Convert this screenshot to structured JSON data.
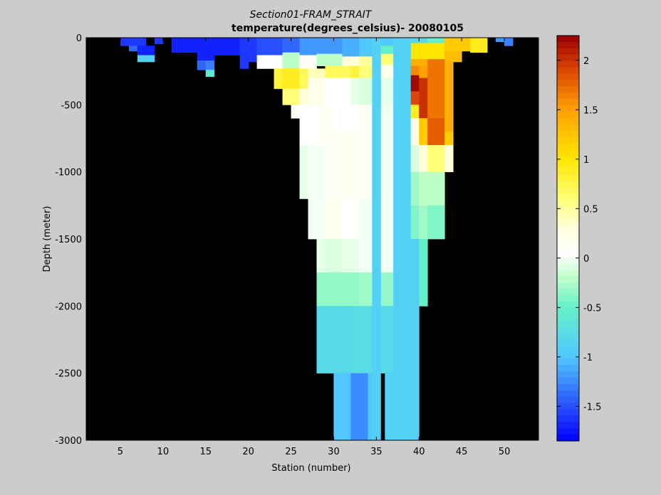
{
  "chart_data": {
    "type": "heatmap",
    "title": "Section01-FRAM_STRAIT",
    "subtitle": "temperature(degrees_celsius)- 20080105",
    "xlabel": "Station (number)",
    "ylabel": "Depth (meter)",
    "xlim": [
      1,
      54
    ],
    "ylim": [
      -3000,
      0
    ],
    "x_ticks": [
      5,
      10,
      15,
      20,
      25,
      30,
      35,
      40,
      45,
      50
    ],
    "y_ticks": [
      0,
      -500,
      -1000,
      -1500,
      -2000,
      -2500,
      -3000
    ],
    "y_tick_labels": [
      "0",
      "-500",
      "-1000",
      "-1500",
      "-2000",
      "-2500",
      "-3000"
    ],
    "x_tick_labels": [
      "5",
      "10",
      "15",
      "20",
      "25",
      "30",
      "35",
      "40",
      "45",
      "50"
    ],
    "colorbar": {
      "clim": [
        -1.85,
        2.25
      ],
      "ticks": [
        2,
        1.5,
        1,
        0.5,
        0,
        -0.5,
        -1,
        -1.5
      ],
      "tick_labels": [
        "2",
        "1.5",
        "1",
        "0.5",
        "0",
        "-0.5",
        "-1",
        "-1.5"
      ],
      "colormap": "jet-white-center"
    },
    "background_color": "#000000",
    "cells": [
      {
        "x0": 5,
        "x1": 8,
        "d0": 0,
        "d1": 60,
        "v": -1.6
      },
      {
        "x0": 6,
        "x1": 7,
        "d0": 60,
        "d1": 100,
        "v": -1.4
      },
      {
        "x0": 7,
        "x1": 9,
        "d0": 60,
        "d1": 130,
        "v": -1.7
      },
      {
        "x0": 7,
        "x1": 9,
        "d0": 130,
        "d1": 180,
        "v": -0.9
      },
      {
        "x0": 9,
        "x1": 10,
        "d0": 0,
        "d1": 45,
        "v": -1.6
      },
      {
        "x0": 11,
        "x1": 14,
        "d0": 0,
        "d1": 110,
        "v": -1.7
      },
      {
        "x0": 14,
        "x1": 16,
        "d0": 0,
        "d1": 170,
        "v": -1.7
      },
      {
        "x0": 14,
        "x1": 15,
        "d0": 170,
        "d1": 240,
        "v": -1.4
      },
      {
        "x0": 15,
        "x1": 16,
        "d0": 170,
        "d1": 240,
        "v": -1.3
      },
      {
        "x0": 15,
        "x1": 16,
        "d0": 240,
        "d1": 290,
        "v": -0.6
      },
      {
        "x0": 16,
        "x1": 19,
        "d0": 0,
        "d1": 130,
        "v": -1.7
      },
      {
        "x0": 19,
        "x1": 21,
        "d0": 0,
        "d1": 180,
        "v": -1.6
      },
      {
        "x0": 21,
        "x1": 24,
        "d0": 0,
        "d1": 130,
        "v": -1.5
      },
      {
        "x0": 21,
        "x1": 24,
        "d0": 130,
        "d1": 230,
        "v": 0.05
      },
      {
        "x0": 24,
        "x1": 26,
        "d0": 0,
        "d1": 110,
        "v": -1.4
      },
      {
        "x0": 24,
        "x1": 26,
        "d0": 110,
        "d1": 230,
        "v": -0.2
      },
      {
        "x0": 26,
        "x1": 28,
        "d0": 0,
        "d1": 130,
        "v": -1.2
      },
      {
        "x0": 26,
        "x1": 28,
        "d0": 130,
        "d1": 230,
        "v": 0.1
      },
      {
        "x0": 28,
        "x1": 31,
        "d0": 0,
        "d1": 120,
        "v": -1.2
      },
      {
        "x0": 28,
        "x1": 31,
        "d0": 120,
        "d1": 210,
        "v": -0.2
      },
      {
        "x0": 31,
        "x1": 33,
        "d0": 0,
        "d1": 140,
        "v": -1.1
      },
      {
        "x0": 31,
        "x1": 33,
        "d0": 140,
        "d1": 210,
        "v": 0.3
      },
      {
        "x0": 33,
        "x1": 35,
        "d0": 0,
        "d1": 140,
        "v": -1.0
      },
      {
        "x0": 33,
        "x1": 35,
        "d0": 140,
        "d1": 210,
        "v": 0.5
      },
      {
        "x0": 35,
        "x1": 37,
        "d0": 0,
        "d1": 60,
        "v": -1.0
      },
      {
        "x0": 35,
        "x1": 37,
        "d0": 60,
        "d1": 120,
        "v": -0.5
      },
      {
        "x0": 35,
        "x1": 37,
        "d0": 120,
        "d1": 200,
        "v": 0.6
      },
      {
        "x0": 39,
        "x1": 41,
        "d0": 0,
        "d1": 40,
        "v": -0.8
      },
      {
        "x0": 39,
        "x1": 41,
        "d0": 40,
        "d1": 160,
        "v": 1.0
      },
      {
        "x0": 41,
        "x1": 43,
        "d0": 0,
        "d1": 40,
        "v": -0.5
      },
      {
        "x0": 41,
        "x1": 43,
        "d0": 40,
        "d1": 160,
        "v": 1.0
      },
      {
        "x0": 43,
        "x1": 46,
        "d0": 0,
        "d1": 100,
        "v": 1.2
      },
      {
        "x0": 43,
        "x1": 45,
        "d0": 100,
        "d1": 180,
        "v": 1.3
      },
      {
        "x0": 46,
        "x1": 48,
        "d0": 0,
        "d1": 110,
        "v": 0.9
      },
      {
        "x0": 49,
        "x1": 50,
        "d0": 0,
        "d1": 30,
        "v": -1.2
      },
      {
        "x0": 50,
        "x1": 51,
        "d0": 0,
        "d1": 60,
        "v": -1.3
      },
      {
        "x0": 19,
        "x1": 20,
        "d0": 180,
        "d1": 230,
        "v": -1.6
      },
      {
        "x0": 23,
        "x1": 24,
        "d0": 230,
        "d1": 380,
        "v": 0.8
      },
      {
        "x0": 24,
        "x1": 26,
        "d0": 230,
        "d1": 380,
        "v": 0.9
      },
      {
        "x0": 24,
        "x1": 26,
        "d0": 380,
        "d1": 500,
        "v": 0.6
      },
      {
        "x0": 26,
        "x1": 27,
        "d0": 230,
        "d1": 380,
        "v": 0.7
      },
      {
        "x0": 26,
        "x1": 27,
        "d0": 380,
        "d1": 500,
        "v": 0.3
      },
      {
        "x0": 27,
        "x1": 29,
        "d0": 230,
        "d1": 300,
        "v": 0.4
      },
      {
        "x0": 27,
        "x1": 29,
        "d0": 300,
        "d1": 500,
        "v": 0.2
      },
      {
        "x0": 29,
        "x1": 32,
        "d0": 210,
        "d1": 300,
        "v": 0.7
      },
      {
        "x0": 29,
        "x1": 32,
        "d0": 300,
        "d1": 500,
        "v": 0.05
      },
      {
        "x0": 32,
        "x1": 33,
        "d0": 210,
        "d1": 300,
        "v": 0.8
      },
      {
        "x0": 32,
        "x1": 33,
        "d0": 300,
        "d1": 500,
        "v": -0.05
      },
      {
        "x0": 33,
        "x1": 35,
        "d0": 210,
        "d1": 300,
        "v": 0.6
      },
      {
        "x0": 33,
        "x1": 35,
        "d0": 300,
        "d1": 500,
        "v": -0.1
      },
      {
        "x0": 35,
        "x1": 37,
        "d0": 200,
        "d1": 300,
        "v": 0.2
      },
      {
        "x0": 35,
        "x1": 37,
        "d0": 300,
        "d1": 500,
        "v": -0.05
      },
      {
        "x0": 25,
        "x1": 26,
        "d0": 500,
        "d1": 600,
        "v": 0.1
      },
      {
        "x0": 26,
        "x1": 28,
        "d0": 500,
        "d1": 800,
        "v": 0.05
      },
      {
        "x0": 26,
        "x1": 27,
        "d0": 800,
        "d1": 1200,
        "v": -0.05
      },
      {
        "x0": 27,
        "x1": 29,
        "d0": 800,
        "d1": 1200,
        "v": 0.0
      },
      {
        "x0": 28,
        "x1": 30,
        "d0": 500,
        "d1": 800,
        "v": 0.1
      },
      {
        "x0": 29,
        "x1": 30,
        "d0": 800,
        "d1": 1200,
        "v": 0.1
      },
      {
        "x0": 30,
        "x1": 33,
        "d0": 500,
        "d1": 700,
        "v": 0.05
      },
      {
        "x0": 30,
        "x1": 33,
        "d0": 700,
        "d1": 1200,
        "v": 0.15
      },
      {
        "x0": 33,
        "x1": 35,
        "d0": 500,
        "d1": 1200,
        "v": 0.1
      },
      {
        "x0": 35,
        "x1": 37,
        "d0": 500,
        "d1": 1200,
        "v": 0.0
      },
      {
        "x0": 27,
        "x1": 29,
        "d0": 1200,
        "d1": 1500,
        "v": 0.0
      },
      {
        "x0": 28,
        "x1": 29,
        "d0": 1500,
        "d1": 1750,
        "v": -0.05
      },
      {
        "x0": 29,
        "x1": 31,
        "d0": 1200,
        "d1": 1500,
        "v": 0.15
      },
      {
        "x0": 29,
        "x1": 31,
        "d0": 1500,
        "d1": 1750,
        "v": -0.1
      },
      {
        "x0": 31,
        "x1": 33,
        "d0": 1200,
        "d1": 1500,
        "v": 0.05
      },
      {
        "x0": 31,
        "x1": 33,
        "d0": 1500,
        "d1": 1750,
        "v": -0.05
      },
      {
        "x0": 33,
        "x1": 35,
        "d0": 1200,
        "d1": 1750,
        "v": 0.0
      },
      {
        "x0": 35,
        "x1": 37,
        "d0": 1200,
        "d1": 1750,
        "v": 0.0
      },
      {
        "x0": 28,
        "x1": 33,
        "d0": 1750,
        "d1": 2000,
        "v": -0.35
      },
      {
        "x0": 33,
        "x1": 35,
        "d0": 1750,
        "d1": 2000,
        "v": -0.3
      },
      {
        "x0": 35,
        "x1": 37,
        "d0": 1750,
        "d1": 2000,
        "v": -0.35
      },
      {
        "x0": 28,
        "x1": 32,
        "d0": 2000,
        "d1": 2500,
        "v": -0.8
      },
      {
        "x0": 32,
        "x1": 35,
        "d0": 2000,
        "d1": 2500,
        "v": -0.75
      },
      {
        "x0": 35,
        "x1": 37,
        "d0": 2000,
        "d1": 2500,
        "v": -0.8
      },
      {
        "x0": 30,
        "x1": 32,
        "d0": 2500,
        "d1": 3000,
        "v": -1.0
      },
      {
        "x0": 32,
        "x1": 34,
        "d0": 2500,
        "d1": 3000,
        "v": -1.25
      },
      {
        "x0": 34,
        "x1": 35,
        "d0": 2500,
        "d1": 3000,
        "v": -1.0
      },
      {
        "x0": 36,
        "x1": 37,
        "d0": 2500,
        "d1": 3000,
        "v": -0.9
      },
      {
        "x0": 37,
        "x1": 39,
        "d0": 0,
        "d1": 3000,
        "v": -0.9
      },
      {
        "x0": 39,
        "x1": 41,
        "d0": 160,
        "d1": 210,
        "v": 1.4
      },
      {
        "x0": 39,
        "x1": 40,
        "d0": 210,
        "d1": 280,
        "v": 1.6
      },
      {
        "x0": 39,
        "x1": 40,
        "d0": 280,
        "d1": 400,
        "v": 2.2
      },
      {
        "x0": 39,
        "x1": 40,
        "d0": 400,
        "d1": 500,
        "v": 1.9
      },
      {
        "x0": 39,
        "x1": 40,
        "d0": 500,
        "d1": 600,
        "v": 0.9
      },
      {
        "x0": 39,
        "x1": 40,
        "d0": 600,
        "d1": 800,
        "v": 0.2
      },
      {
        "x0": 39,
        "x1": 40,
        "d0": 800,
        "d1": 1000,
        "v": -0.1
      },
      {
        "x0": 39,
        "x1": 40,
        "d0": 1000,
        "d1": 1250,
        "v": -0.3
      },
      {
        "x0": 39,
        "x1": 40,
        "d0": 1250,
        "d1": 1500,
        "v": -0.4
      },
      {
        "x0": 39,
        "x1": 40,
        "d0": 1500,
        "d1": 3000,
        "v": -0.9
      },
      {
        "x0": 40,
        "x1": 41,
        "d0": 210,
        "d1": 300,
        "v": 1.5
      },
      {
        "x0": 40,
        "x1": 41,
        "d0": 300,
        "d1": 600,
        "v": 2.0
      },
      {
        "x0": 40,
        "x1": 41,
        "d0": 600,
        "d1": 800,
        "v": 1.2
      },
      {
        "x0": 40,
        "x1": 41,
        "d0": 800,
        "d1": 1000,
        "v": 0.3
      },
      {
        "x0": 40,
        "x1": 41,
        "d0": 1000,
        "d1": 1250,
        "v": -0.2
      },
      {
        "x0": 40,
        "x1": 41,
        "d0": 1250,
        "d1": 1500,
        "v": -0.3
      },
      {
        "x0": 40,
        "x1": 41,
        "d0": 1500,
        "d1": 2000,
        "v": -0.5
      },
      {
        "x0": 41,
        "x1": 43,
        "d0": 160,
        "d1": 600,
        "v": 1.7
      },
      {
        "x0": 41,
        "x1": 43,
        "d0": 600,
        "d1": 800,
        "v": 1.8
      },
      {
        "x0": 41,
        "x1": 43,
        "d0": 800,
        "d1": 1000,
        "v": 0.6
      },
      {
        "x0": 41,
        "x1": 43,
        "d0": 1000,
        "d1": 1250,
        "v": -0.2
      },
      {
        "x0": 41,
        "x1": 43,
        "d0": 1250,
        "d1": 1500,
        "v": -0.4
      },
      {
        "x0": 43,
        "x1": 44,
        "d0": 180,
        "d1": 700,
        "v": 1.4
      },
      {
        "x0": 43,
        "x1": 44,
        "d0": 700,
        "d1": 800,
        "v": 1.2
      },
      {
        "x0": 43,
        "x1": 44,
        "d0": 800,
        "d1": 1000,
        "v": 0.3
      },
      {
        "x0": 34.5,
        "x1": 35.5,
        "d0": 0,
        "d1": 3000,
        "v": -0.9
      },
      {
        "x0": 37,
        "x1": 39,
        "d0": 0,
        "d1": 3000,
        "v": -0.9
      }
    ]
  }
}
